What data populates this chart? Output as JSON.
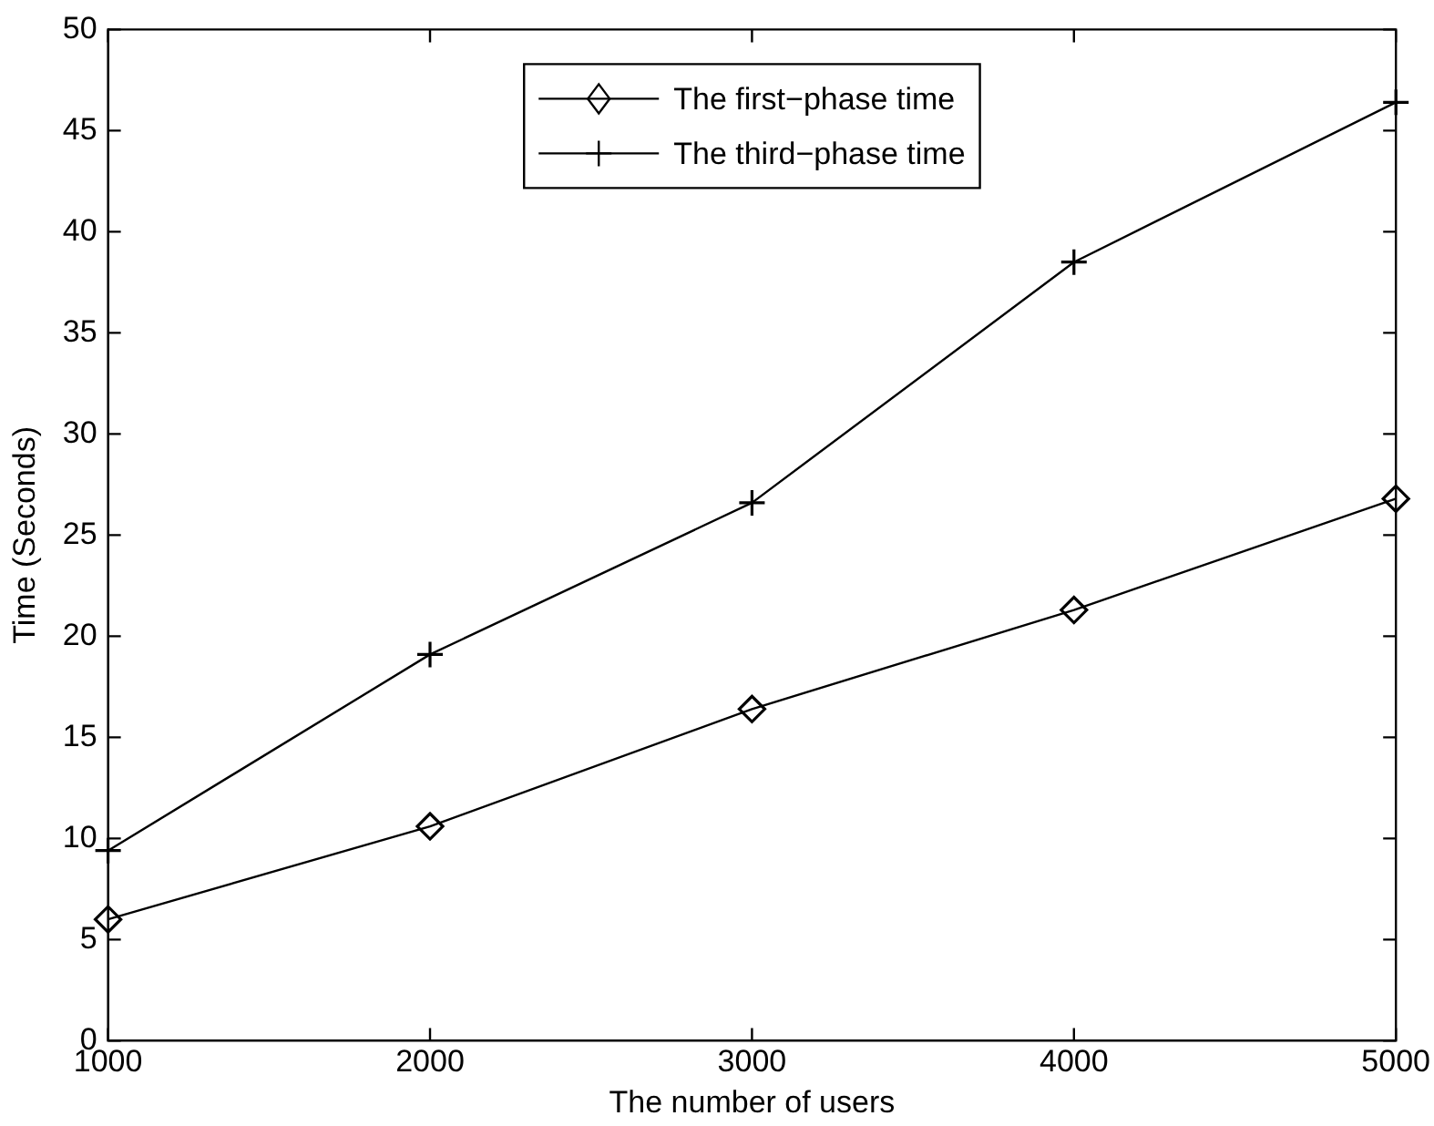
{
  "chart_data": {
    "type": "line",
    "xlabel": "The number of users",
    "ylabel": "Time (Seconds)",
    "x": [
      1000,
      2000,
      3000,
      4000,
      5000
    ],
    "series": [
      {
        "name": "The first−phase time",
        "color": "#000000",
        "marker": "diamond",
        "values": [
          6.0,
          10.6,
          16.4,
          21.3,
          26.8
        ]
      },
      {
        "name": "The third−phase time",
        "color": "#000000",
        "marker": "cross",
        "values": [
          9.4,
          19.1,
          26.6,
          38.5,
          46.4
        ]
      }
    ],
    "xlim": [
      1000,
      5000
    ],
    "xticks": [
      1000,
      2000,
      3000,
      4000,
      5000
    ],
    "ylim": [
      0,
      50
    ],
    "yticks": [
      0,
      5,
      10,
      15,
      20,
      25,
      30,
      35,
      40,
      45,
      50
    ],
    "grid": false,
    "legend": "top",
    "line_style": "solid"
  }
}
